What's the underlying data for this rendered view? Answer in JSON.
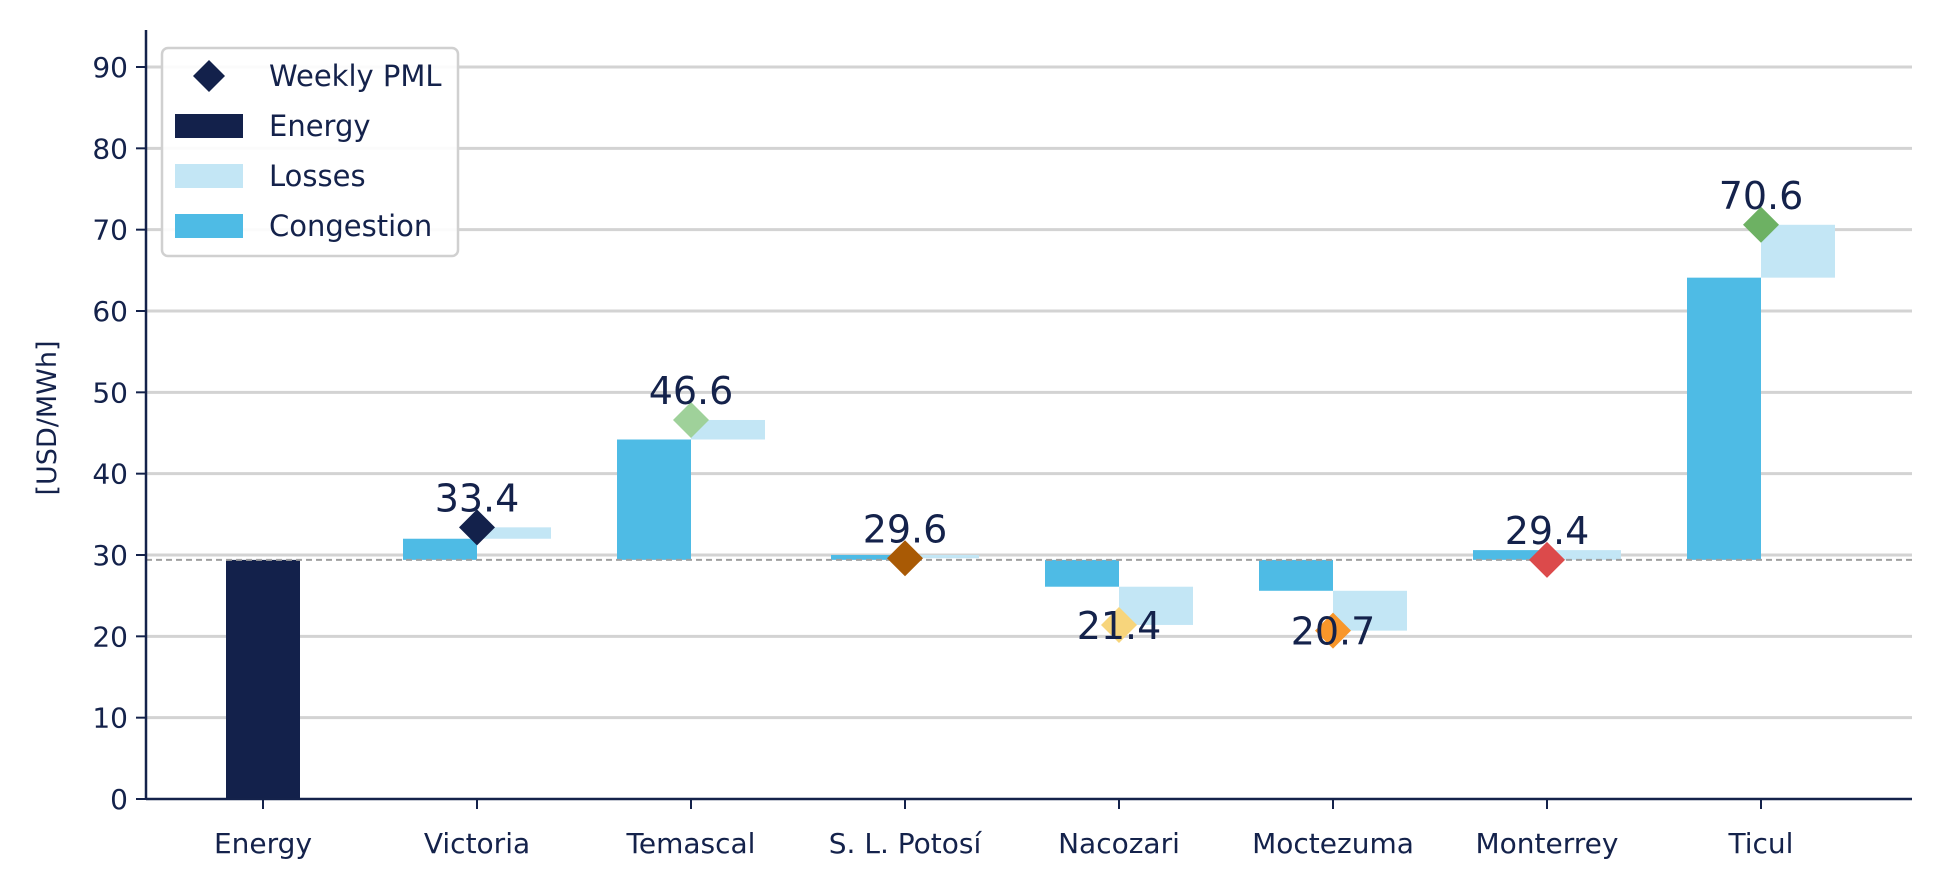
{
  "chart_data": {
    "type": "bar",
    "subtype": "waterfall",
    "ylabel": "[USD/MWh]",
    "ylim": [
      0,
      95
    ],
    "yticks": [
      0,
      10,
      20,
      30,
      40,
      50,
      60,
      70,
      80,
      90
    ],
    "grid": true,
    "legend_position": "top-left",
    "categories": [
      "Energy",
      "Victoria",
      "Temascal",
      "S. L. Potosí",
      "Nacozari",
      "Moctezuma",
      "Monterrey",
      "Ticul"
    ],
    "reference_line": 29.4,
    "energy": 29.4,
    "congestion": [
      null,
      2.6,
      14.8,
      0.6,
      -3.3,
      -3.8,
      1.2,
      34.7
    ],
    "losses": [
      null,
      1.4,
      2.4,
      -0.4,
      -4.7,
      -4.9,
      -1.2,
      6.5
    ],
    "weekly_pml": [
      null,
      33.4,
      46.6,
      29.6,
      21.4,
      20.7,
      29.4,
      70.6
    ],
    "pml_labels": [
      "",
      "33.4",
      "46.6",
      "29.6",
      "21.4",
      "20.7",
      "29.4",
      "70.6"
    ],
    "pml_colors": [
      "",
      "#13214b",
      "#9fd19a",
      "#a95a05",
      "#f7d57c",
      "#f8962a",
      "#dc4a4b",
      "#6db163"
    ],
    "legend": [
      {
        "label": "Weekly PML",
        "kind": "diamond",
        "color": "#13214b"
      },
      {
        "label": "Energy",
        "kind": "rect",
        "color": "#13214b"
      },
      {
        "label": "Losses",
        "kind": "rect",
        "color": "#c3e6f5"
      },
      {
        "label": "Congestion",
        "kind": "rect",
        "color": "#4ebbe5"
      }
    ],
    "colors": {
      "energy": "#13214b",
      "losses": "#c3e6f5",
      "congestion": "#4ebbe5",
      "axis": "#14224b",
      "grid": "#d3d3d3",
      "reference": "#a0a0a0"
    }
  }
}
